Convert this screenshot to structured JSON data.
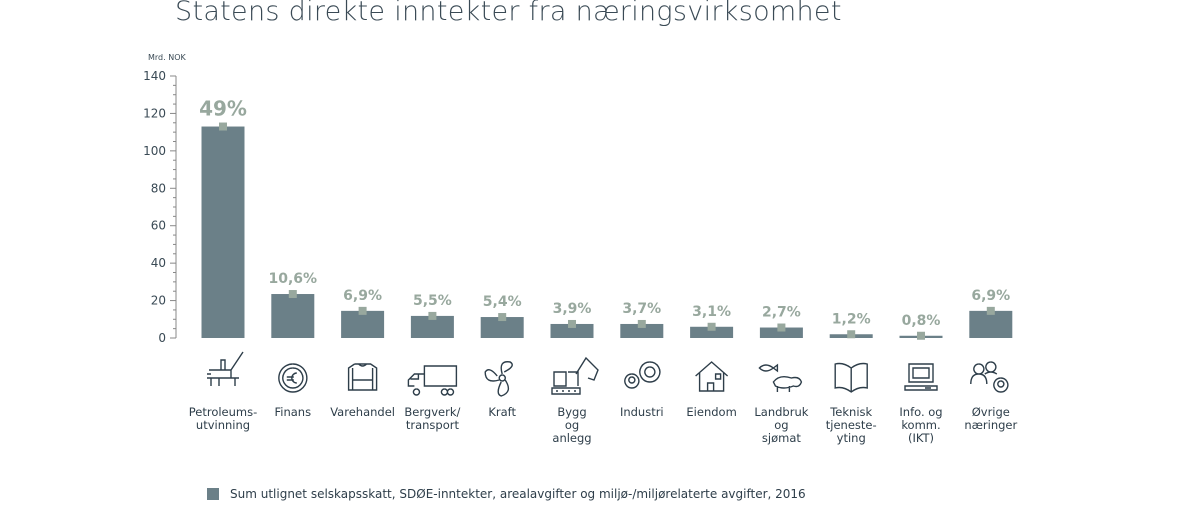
{
  "title": "Statens direkte inntekter fra næringsvirksomhet",
  "chart_data": {
    "type": "bar",
    "title": "Statens direkte inntekter fra næringsvirksomhet",
    "ylabel": "Mrd. NOK",
    "ylim": [
      0,
      140
    ],
    "yticks": [
      0,
      20,
      40,
      60,
      80,
      100,
      120,
      140
    ],
    "categories": [
      "Petroleums-\nutvinning",
      "Finans",
      "Varehandel",
      "Bergverk/\ntransport",
      "Kraft",
      "Bygg\nog\nanlegg",
      "Industri",
      "Eiendom",
      "Landbruk\nog\nsjømat",
      "Teknisk\ntjeneste-\nyting",
      "Info. og\nkomm.\n(IKT)",
      "Øvrige\nnæringer"
    ],
    "icons": [
      "oil-platform-icon",
      "coin-euro-icon",
      "sweater-icon",
      "truck-icon",
      "fan-icon",
      "excavator-icon",
      "gears-icon",
      "house-icon",
      "fish-sheep-icon",
      "book-icon",
      "computer-icon",
      "people-gear-icon"
    ],
    "values": [
      113,
      23.5,
      14.5,
      11.8,
      11.2,
      7.5,
      7.5,
      6,
      5.6,
      2,
      1.2,
      14.5
    ],
    "labels": [
      "49%",
      "10,6%",
      "6,9%",
      "5,5%",
      "5,4%",
      "3,9%",
      "3,7%",
      "3,1%",
      "2,7%",
      "1,2%",
      "0,8%",
      "6,9%"
    ],
    "series": [
      {
        "name": "Sum utlignet selskapsskatt, SDØE-inntekter, arealavgifter og miljø-/miljørelaterte avgifter, 2016",
        "color": "#6b8088"
      }
    ],
    "marker_color": "#98a89e",
    "grid": false,
    "legend": "bottom-left"
  }
}
